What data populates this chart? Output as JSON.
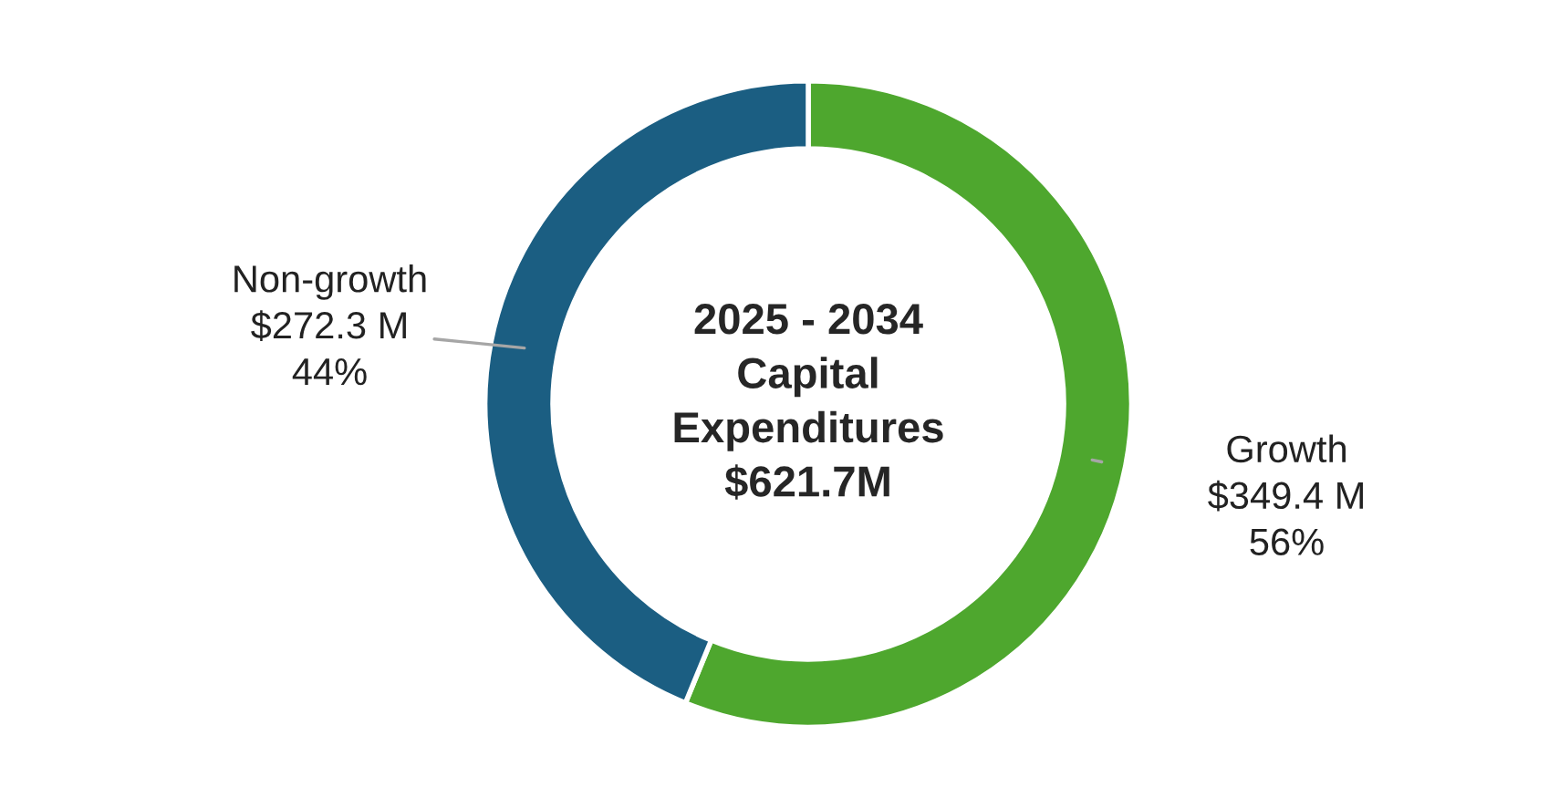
{
  "chart_data": {
    "type": "donut",
    "categories": [
      "Growth",
      "Non-growth"
    ],
    "values": [
      349.4,
      272.3
    ],
    "colors": [
      "#4ea72e",
      "#1b5e82"
    ],
    "value_labels": [
      "$349.4 M\n56%",
      "$272.3 M\n44%"
    ],
    "annotations": [
      "2025 - 2034\nCapital\nExpenditures\n$621.7M"
    ],
    "legend": false
  }
}
